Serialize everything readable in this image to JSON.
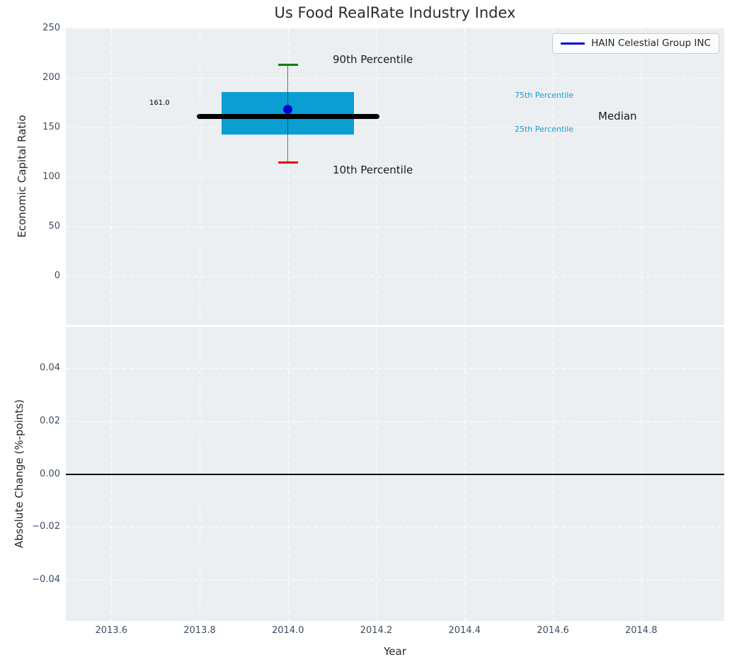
{
  "chart_data": {
    "type": "boxplot",
    "title": "Us Food RealRate Industry Index",
    "xlabel": "Year",
    "xlim": [
      2013.497,
      2014.988
    ],
    "xticks": [
      2013.6,
      2013.8,
      2014.0,
      2014.2,
      2014.4,
      2014.6,
      2014.8
    ],
    "xtick_labels": [
      "2013.6",
      "2013.8",
      "2014.0",
      "2014.2",
      "2014.4",
      "2014.6",
      "2014.8"
    ],
    "grid": true,
    "top_panel": {
      "ylabel": "Economic Capital Ratio",
      "ylim": [
        -49,
        250
      ],
      "yticks": [
        250,
        200,
        150,
        100,
        50,
        0
      ],
      "ytick_labels": [
        "250",
        "200",
        "150",
        "100",
        "50",
        "0"
      ],
      "box": {
        "x": 2014.0,
        "p10": 115,
        "p25": 143,
        "median": 161.0,
        "p75": 186,
        "p90": 213,
        "median_label": "161.0",
        "company_point": {
          "name": "HAIN Celestial Group INC",
          "value": 168
        }
      },
      "annotations": {
        "p90": "90th Percentile",
        "p10": "10th Percentile",
        "p75": "75th Percentile",
        "p25": "25th Percentile",
        "median": "Median"
      }
    },
    "bottom_panel": {
      "ylabel": "Absolute Change (%-points)",
      "ylim": [
        -0.0555,
        0.0555
      ],
      "yticks": [
        0.04,
        0.02,
        0.0,
        -0.02,
        -0.04
      ],
      "ytick_labels": [
        "0.04",
        "0.02",
        "0.00",
        "−0.02",
        "−0.04"
      ],
      "zero_line": 0.0
    },
    "colors": {
      "box_fill": "#0a9ed3",
      "median_line": "#000000",
      "whisker": "#666666",
      "p90_cap": "#008000",
      "p10_cap": "#ef0000",
      "company_point": "#0000cd",
      "percentile_text": "#189bd4",
      "tick_text": "#3c4f63",
      "axes_background": "#eceff1"
    }
  },
  "legend": {
    "label": "HAIN Celestial Group INC",
    "line_color": "#0000cd"
  }
}
